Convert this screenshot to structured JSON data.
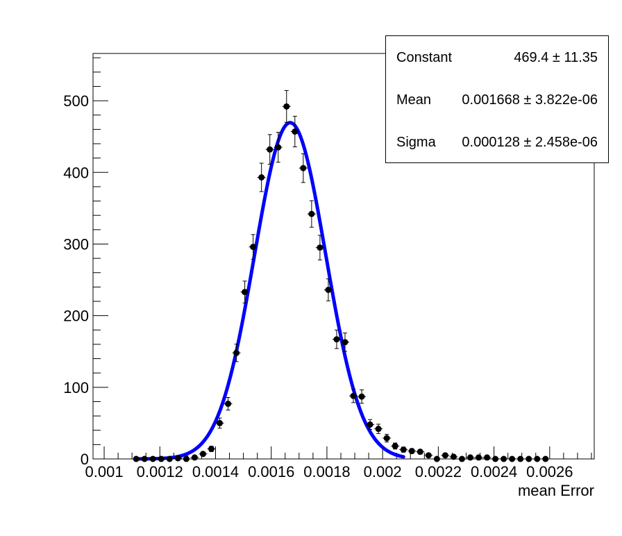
{
  "chart_data": {
    "type": "scatter",
    "xlabel": "mean Error",
    "ylabel": "",
    "xlim": [
      0.00096,
      0.00276
    ],
    "ylim": [
      0,
      566
    ],
    "x_tick_labels": [
      "0.001",
      "0.0012",
      "0.0014",
      "0.0016",
      "0.0018",
      "0.002",
      "0.0022",
      "0.0024",
      "0.0026"
    ],
    "x_ticks": [
      0.001,
      0.0012,
      0.0014,
      0.0016,
      0.0018,
      0.002,
      0.0022,
      0.0024,
      0.0026
    ],
    "y_tick_labels": [
      "0",
      "100",
      "200",
      "300",
      "400",
      "500"
    ],
    "y_ticks": [
      0,
      100,
      200,
      300,
      400,
      500
    ],
    "grid": false,
    "bin_width": 3e-05,
    "series": [
      {
        "type": "points_with_errors",
        "color": "#000000",
        "x": [
          0.001115,
          0.001145,
          0.001175,
          0.001205,
          0.001235,
          0.001265,
          0.001295,
          0.001325,
          0.001355,
          0.001385,
          0.001415,
          0.001445,
          0.001475,
          0.001505,
          0.001535,
          0.001565,
          0.001595,
          0.001625,
          0.001655,
          0.001685,
          0.001715,
          0.001745,
          0.001775,
          0.001805,
          0.001835,
          0.001865,
          0.001895,
          0.001925,
          0.001955,
          0.001985,
          0.002015,
          0.002045,
          0.002075,
          0.002105,
          0.002135,
          0.002165,
          0.002195,
          0.002225,
          0.002255,
          0.002285,
          0.002315,
          0.002345,
          0.002375,
          0.002405,
          0.002435,
          0.002465,
          0.002495,
          0.002525,
          0.002555,
          0.002585
        ],
        "y": [
          0,
          0,
          0,
          0,
          0,
          1,
          0,
          2,
          7,
          14,
          50,
          77,
          148,
          233,
          296,
          393,
          432,
          435,
          492,
          457,
          406,
          342,
          295,
          236,
          167,
          163,
          88,
          87,
          48,
          42,
          29,
          18,
          13,
          11,
          10,
          5,
          0,
          5,
          3,
          0,
          2,
          2,
          2,
          0,
          0,
          0,
          0,
          0,
          0,
          0
        ]
      },
      {
        "type": "gaussian_fit",
        "color": "#0000ff",
        "x_range": [
          0.001115,
          0.002075
        ]
      }
    ]
  },
  "stats": {
    "rows": [
      {
        "name": "Constant",
        "value": "469.4 ± 11.35"
      },
      {
        "name": "Mean",
        "value": "0.001668 ± 3.822e-06"
      },
      {
        "name": "Sigma",
        "value": "0.000128 ± 2.458e-06"
      }
    ],
    "fit": {
      "constant": 469.4,
      "mean": 0.001668,
      "sigma": 0.000128
    }
  }
}
